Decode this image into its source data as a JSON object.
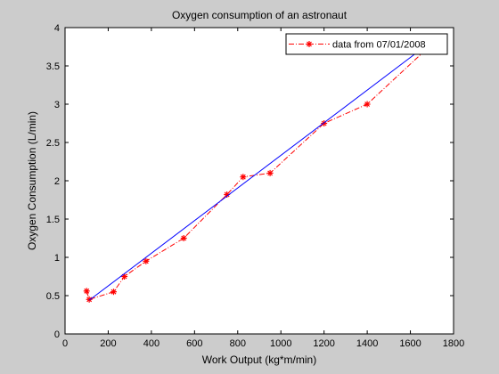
{
  "chart_data": {
    "type": "line",
    "title": "Oxygen consumption of an astronaut",
    "xlabel": "Work Output (kg*m/min)",
    "ylabel": "Oxygen Consumption (L/min)",
    "xlim": [
      0,
      1800
    ],
    "ylim": [
      0,
      4
    ],
    "xticks": [
      0,
      200,
      400,
      600,
      800,
      1000,
      1200,
      1400,
      1600,
      1800
    ],
    "yticks": [
      0,
      0.5,
      1,
      1.5,
      2,
      2.5,
      3,
      3.5,
      4
    ],
    "xtick_labels": [
      "0",
      "200",
      "400",
      "600",
      "800",
      "1000",
      "1200",
      "1400",
      "1600",
      "1800"
    ],
    "ytick_labels": [
      "0",
      "0.5",
      "1",
      "1.5",
      "2",
      "2.5",
      "3",
      "3.5",
      "4"
    ],
    "grid": false,
    "legend_position": "top-right",
    "series": [
      {
        "name": "data from 07/01/2008",
        "color": "#ff0000",
        "line_style": "dash-dot",
        "marker": "asterisk",
        "x": [
          100,
          112,
          225,
          275,
          375,
          550,
          750,
          825,
          950,
          1200,
          1400,
          1675
        ],
        "y": [
          0.56,
          0.45,
          0.55,
          0.75,
          0.95,
          1.25,
          1.82,
          2.05,
          2.1,
          2.75,
          3.0,
          3.72
        ]
      },
      {
        "color": "#0000ff",
        "line_style": "solid",
        "marker": "none",
        "x": [
          112,
          1675
        ],
        "y": [
          0.44,
          3.77
        ]
      }
    ]
  }
}
